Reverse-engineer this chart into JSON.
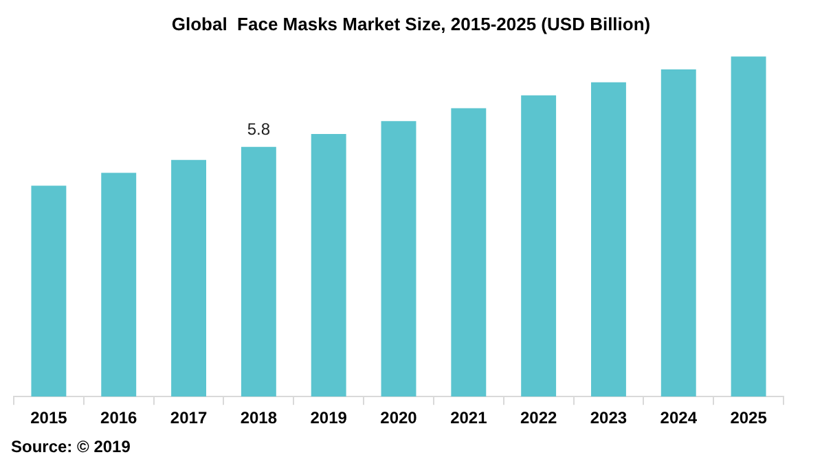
{
  "chart_data": {
    "type": "bar",
    "title": "Global  Face Masks Market Size, 2015-2025 (USD Billion)",
    "categories": [
      "2015",
      "2016",
      "2017",
      "2018",
      "2019",
      "2020",
      "2021",
      "2022",
      "2023",
      "2024",
      "2025"
    ],
    "values": [
      4.9,
      5.2,
      5.5,
      5.8,
      6.1,
      6.4,
      6.7,
      7.0,
      7.3,
      7.6,
      7.9
    ],
    "value_labels": [
      null,
      null,
      null,
      "5.8",
      null,
      null,
      null,
      null,
      null,
      null,
      null
    ],
    "color": "#5bc4cf",
    "grid": false,
    "legend": false,
    "annotations": [
      "Source: © 2019"
    ]
  }
}
